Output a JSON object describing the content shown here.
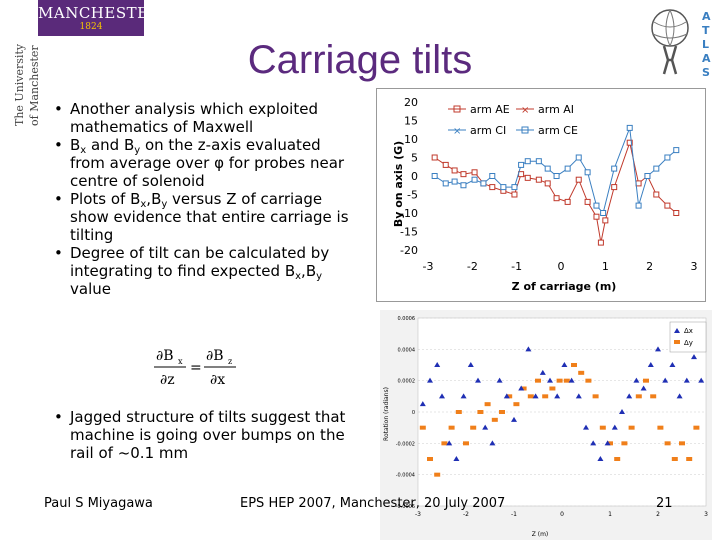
{
  "header": {
    "university_vertical": [
      "The University",
      "of Manchester"
    ],
    "logo_name": "MANCHESTER",
    "logo_year": "1824",
    "title": "Carriage tilts",
    "atlas_letters": [
      "A",
      "T",
      "L",
      "A",
      "S"
    ]
  },
  "bullets": {
    "b1": "Another analysis which exploited mathematics of Maxwell",
    "b2_pre": "B",
    "b2_sub1": "x",
    "b2_mid": " and B",
    "b2_sub2": "y",
    "b2_post": " on the z-axis evaluated from average over φ for probes near centre of solenoid",
    "b3_pre": "Plots of B",
    "b3_sub1": "x",
    "b3_mid": ",B",
    "b3_sub2": "y",
    "b3_post": " versus Z of carriage show evidence that entire carriage is tilting",
    "b4_pre": "Degree of tilt can be calculated by integrating to find expected B",
    "b4_sub1": "x",
    "b4_mid": ",B",
    "b4_sub2": "y",
    "b4_post": " value",
    "b5": "Jagged structure of tilts suggest that machine is going over bumps on the rail of ~0.1 mm"
  },
  "equation": {
    "lhs_num": "∂B",
    "lhs_num_sub": "x",
    "lhs_den": "∂z",
    "equals": "=",
    "rhs_num": "∂B",
    "rhs_num_sub": "z",
    "rhs_den": "∂x"
  },
  "footer": {
    "author": "Paul S Miyagawa",
    "conference": "EPS HEP 2007, Manchester, 20 July 2007",
    "page": "21"
  },
  "colors": {
    "title": "#5b2a7e",
    "ae": "#c0392b",
    "ai": "#c0392b",
    "ci": "#3a7fc1",
    "ce": "#3a7fc1",
    "bx": "#1f2fb4",
    "by": "#f07f1a"
  },
  "chart_data": [
    {
      "type": "line",
      "xlabel": "Z of carriage (m)",
      "ylabel": "By on axis (G)",
      "xlim": [
        -3,
        3
      ],
      "ylim": [
        -20,
        20
      ],
      "x_ticks": [
        "-3",
        "-2",
        "-1",
        "0",
        "1",
        "2",
        "3"
      ],
      "y_ticks": [
        "20",
        "15",
        "10",
        "5",
        "0",
        "-5",
        "-10",
        "-15",
        "-20"
      ],
      "legend": [
        "arm AE",
        "arm AI",
        "arm CI",
        "arm CE"
      ],
      "series": [
        {
          "name": "arm AE",
          "x": [
            -2.85,
            -2.6,
            -2.4,
            -2.2,
            -1.95,
            -1.75,
            -1.55,
            -1.3,
            -1.05,
            -0.9,
            -0.75,
            -0.5,
            -0.3,
            -0.1,
            0.15,
            0.4,
            0.6,
            0.8,
            0.9,
            1.0,
            1.2,
            1.55,
            1.75,
            1.95,
            2.15,
            2.4,
            2.6
          ],
          "values": [
            5,
            3,
            1.5,
            0.5,
            1,
            -2,
            -3,
            -4,
            -5,
            0.5,
            -0.5,
            -1,
            -2,
            -6,
            -7,
            -1,
            -7,
            -11,
            -18,
            -12,
            -3,
            9,
            -2,
            0,
            -5,
            -8,
            -10
          ]
        },
        {
          "name": "arm CE",
          "x": [
            -2.85,
            -2.6,
            -2.4,
            -2.2,
            -1.95,
            -1.75,
            -1.55,
            -1.3,
            -1.05,
            -0.9,
            -0.75,
            -0.5,
            -0.3,
            -0.1,
            0.15,
            0.4,
            0.6,
            0.8,
            0.95,
            1.2,
            1.55,
            1.75,
            1.95,
            2.15,
            2.4,
            2.6
          ],
          "values": [
            0,
            -2,
            -1.5,
            -2.5,
            -1,
            -2,
            0,
            -3,
            -3,
            3,
            4,
            4,
            2,
            0,
            2,
            5,
            1,
            -8,
            -10,
            2,
            13,
            -8,
            0,
            2,
            5,
            7
          ]
        }
      ]
    },
    {
      "type": "scatter",
      "xlabel": "Z (m)",
      "ylabel": "Rotation (radians)",
      "xlim": [
        -3,
        3
      ],
      "ylim": [
        -0.0006,
        0.0006
      ],
      "x_ticks": [
        "-3",
        "-2",
        "-1",
        "0",
        "1",
        "2",
        "3"
      ],
      "y_ticks": [
        "0.0006",
        "0.0004",
        "0.0002",
        "0",
        "-0.0002",
        "-0.0004",
        "-0.0006"
      ],
      "legend": [
        "Δx",
        "Δy"
      ],
      "series": [
        {
          "name": "Δx",
          "x": [
            -2.9,
            -2.75,
            -2.6,
            -2.5,
            -2.35,
            -2.2,
            -2.05,
            -1.9,
            -1.75,
            -1.6,
            -1.45,
            -1.3,
            -1.15,
            -1.0,
            -0.85,
            -0.7,
            -0.55,
            -0.4,
            -0.25,
            -0.1,
            0.05,
            0.2,
            0.35,
            0.5,
            0.65,
            0.8,
            0.95,
            1.1,
            1.25,
            1.4,
            1.55,
            1.7,
            1.85,
            2.0,
            2.15,
            2.3,
            2.45,
            2.6,
            2.75,
            2.9
          ],
          "values": [
            5e-05,
            0.0002,
            0.0003,
            0.0001,
            -0.0002,
            -0.0003,
            0.0001,
            0.0003,
            0.0002,
            -0.0001,
            -0.0002,
            0.0002,
            0.0001,
            -5e-05,
            0.00015,
            0.0004,
            0.0001,
            0.00025,
            0.0002,
            0.0001,
            0.0003,
            0.0002,
            0.0001,
            -0.0001,
            -0.0002,
            -0.0003,
            -0.0002,
            -0.0001,
            0.0,
            0.0001,
            0.0002,
            0.00015,
            0.0003,
            0.0004,
            0.0002,
            0.0003,
            0.0001,
            0.0002,
            0.00035,
            0.0002
          ]
        },
        {
          "name": "Δy",
          "x": [
            -2.9,
            -2.75,
            -2.6,
            -2.45,
            -2.3,
            -2.15,
            -2.0,
            -1.85,
            -1.7,
            -1.55,
            -1.4,
            -1.25,
            -1.1,
            -0.95,
            -0.8,
            -0.65,
            -0.5,
            -0.35,
            -0.2,
            -0.05,
            0.1,
            0.25,
            0.4,
            0.55,
            0.7,
            0.85,
            1.0,
            1.15,
            1.3,
            1.45,
            1.6,
            1.75,
            1.9,
            2.05,
            2.2,
            2.35,
            2.5,
            2.65,
            2.8
          ],
          "values": [
            -0.0001,
            -0.0003,
            -0.0004,
            -0.0002,
            -0.0001,
            0.0,
            -0.0002,
            -0.0001,
            0.0,
            5e-05,
            -5e-05,
            0.0,
            0.0001,
            5e-05,
            0.00015,
            0.0001,
            0.0002,
            0.0001,
            0.00015,
            0.0002,
            0.0002,
            0.0003,
            0.00025,
            0.0002,
            0.0001,
            -0.0001,
            -0.0002,
            -0.0003,
            -0.0002,
            -0.0001,
            0.0001,
            0.0002,
            0.0001,
            -0.0001,
            -0.0002,
            -0.0003,
            -0.0002,
            -0.0003,
            -0.0001
          ]
        }
      ]
    }
  ]
}
